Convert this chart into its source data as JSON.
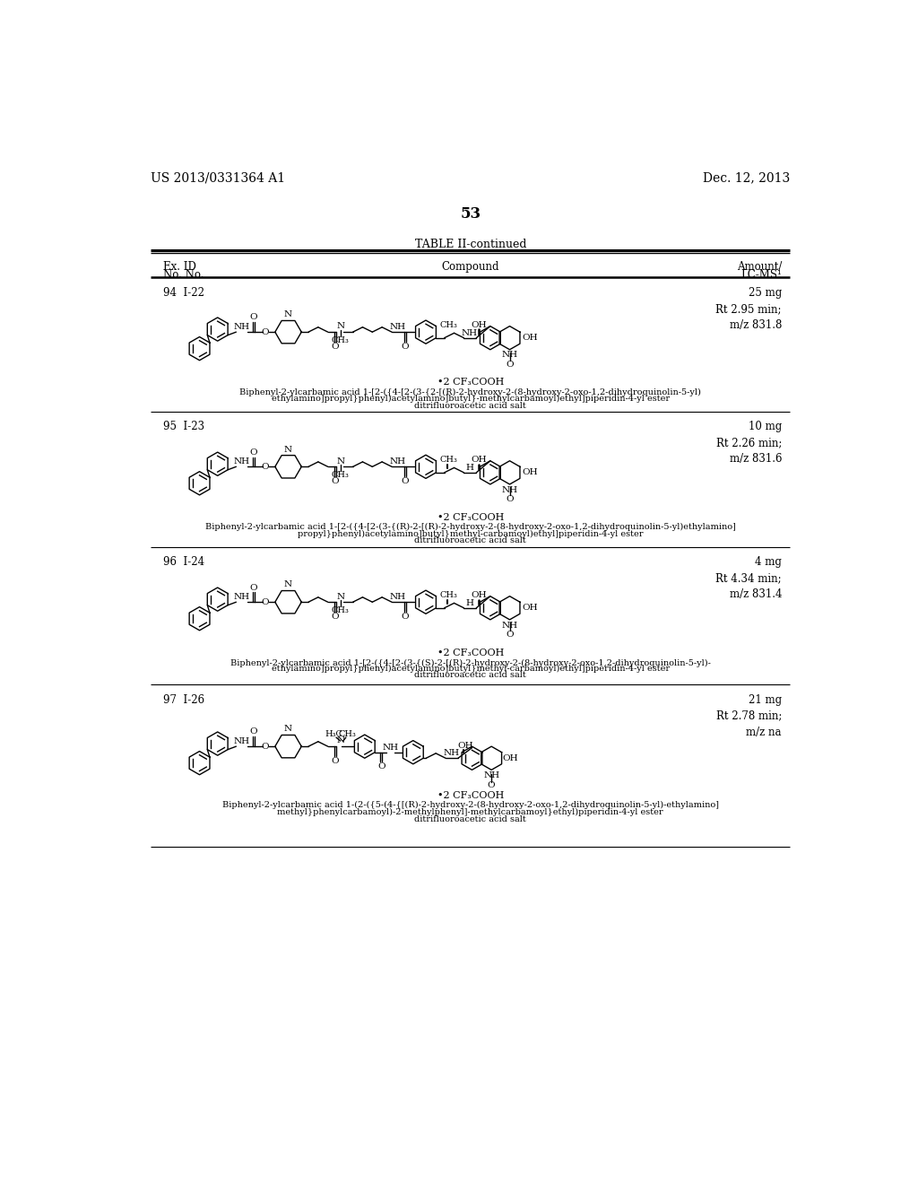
{
  "header_left": "US 2013/0331364 A1",
  "header_right": "Dec. 12, 2013",
  "page_number": "53",
  "table_title": "TABLE II-continued",
  "background_color": "#ffffff",
  "rows": [
    {
      "ex_id": "94",
      "no": "I-22",
      "amount_lcms": "25 mg\nRt 2.95 min;\nm/z 831.8",
      "cf3": "•2 CF₃COOH",
      "name1": "Biphenyl-2-ylcarbamic acid 1-[2-({4-[2-(3-{2-[(R)-2-hydroxy-2-(8-hydroxy-2-oxo-1,2-dihydroquinolin-5-yl)",
      "name2": "ethylamino]propyl}phenyl)acetylamino]butyl}-methylcarbamoyl)ethyl]piperidin-4-yl ester",
      "name3": "ditrifluoroacetic acid salt"
    },
    {
      "ex_id": "95",
      "no": "I-23",
      "amount_lcms": "10 mg\nRt 2.26 min;\nm/z 831.6",
      "cf3": "•2 CF₃COOH",
      "name1": "Biphenyl-2-ylcarbamic acid 1-[2-({4-[2-(3-{(R)-2-[(R)-2-hydroxy-2-(8-hydroxy-2-oxo-1,2-dihydroquinolin-5-yl)ethylamino]",
      "name2": "propyl}phenyl)acetylamino]butyl}methyl-carbamoyl)ethyl]piperidin-4-yl ester",
      "name3": "ditrifluoroacetic acid salt"
    },
    {
      "ex_id": "96",
      "no": "I-24",
      "amount_lcms": "4 mg\nRt 4.34 min;\nm/z 831.4",
      "cf3": "•2 CF₃COOH",
      "name1": "Biphenyl-2-ylcarbamic acid 1-[2-({4-[2-(3-{(S)-2-[(R)-2-hydroxy-2-(8-hydroxy-2-oxo-1,2-dihydroquinolin-5-yl)-",
      "name2": "ethylamino]propyl}phenyl)acetylamino]butyl}methyl-carbamoyl)ethyl]piperidin-4-yl ester",
      "name3": "ditrifluoroacetic acid salt"
    },
    {
      "ex_id": "97",
      "no": "I-26",
      "amount_lcms": "21 mg\nRt 2.78 min;\nm/z na",
      "cf3": "•2 CF₃COOH",
      "name1": "Biphenyl-2-ylcarbamic acid 1-(2-({5-(4-{[(R)-2-hydroxy-2-(8-hydroxy-2-oxo-1,2-dihydroquinolin-5-yl)-ethylamino]",
      "name2": "methyl}phenylcarbamoyl)-2-methylphenyl]-methylcarbamoyl}ethyl)piperidin-4-yl ester",
      "name3": "ditrifluoroacetic acid salt"
    }
  ]
}
